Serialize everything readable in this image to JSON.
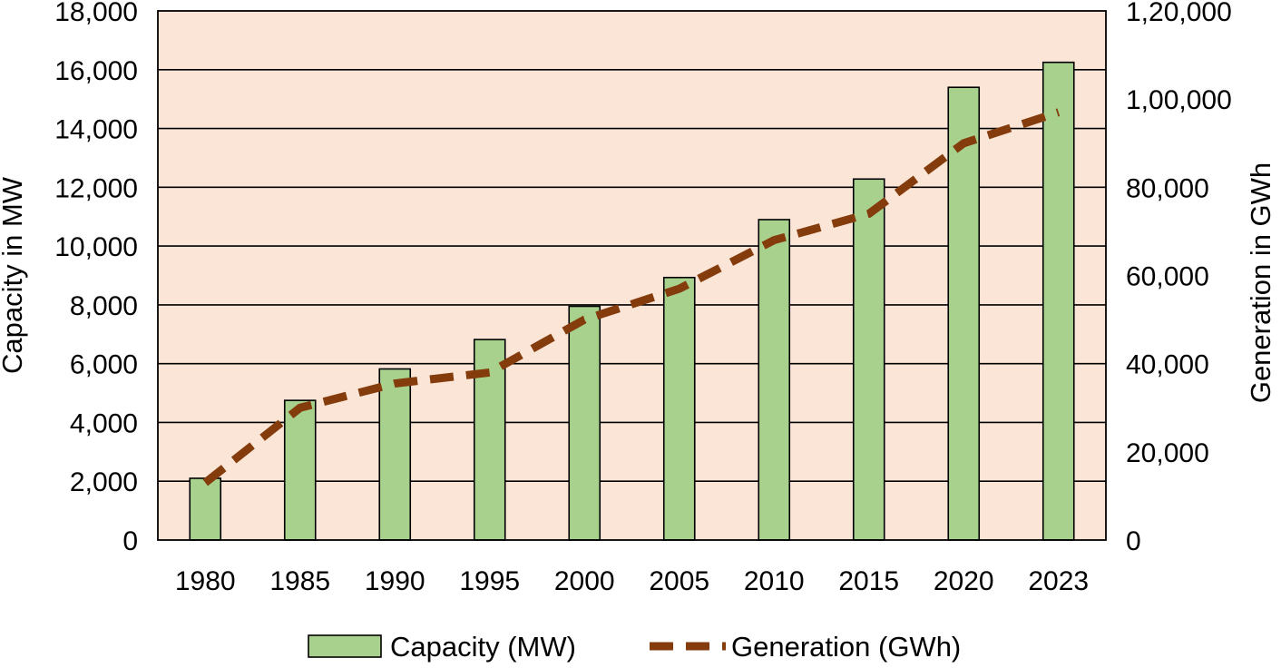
{
  "chart_data": {
    "type": "bar",
    "categories": [
      "1980",
      "1985",
      "1990",
      "1995",
      "2000",
      "2005",
      "2010",
      "2015",
      "2020",
      "2023"
    ],
    "series": [
      {
        "name": "Capacity (MW)",
        "type": "bar",
        "axis": "left",
        "values": [
          2100,
          4750,
          5820,
          6820,
          7950,
          8930,
          10900,
          12280,
          15400,
          16250
        ],
        "color": "#a9d18e"
      },
      {
        "name": "Generation (GWh)",
        "type": "line",
        "style": "dashed",
        "axis": "right",
        "values": [
          13000,
          30000,
          35500,
          38000,
          50000,
          57000,
          68000,
          74000,
          90000,
          97000
        ],
        "color": "#843c0c"
      }
    ],
    "ylabel": "Capacity in MW",
    "ylabel_right": "Generation in GWh",
    "xlabel": "",
    "ylim": [
      0,
      18000
    ],
    "ylim_right": [
      0,
      120000
    ],
    "yticks": [
      "0",
      "2,000",
      "4,000",
      "6,000",
      "8,000",
      "10,000",
      "12,000",
      "14,000",
      "16,000",
      "18,000"
    ],
    "yticks_right": [
      "0",
      "20,000",
      "40,000",
      "60,000",
      "80,000",
      "1,00,000",
      "1,20,000"
    ],
    "grid": true,
    "legend_position": "bottom",
    "plot_background": "#fbe5d6"
  }
}
